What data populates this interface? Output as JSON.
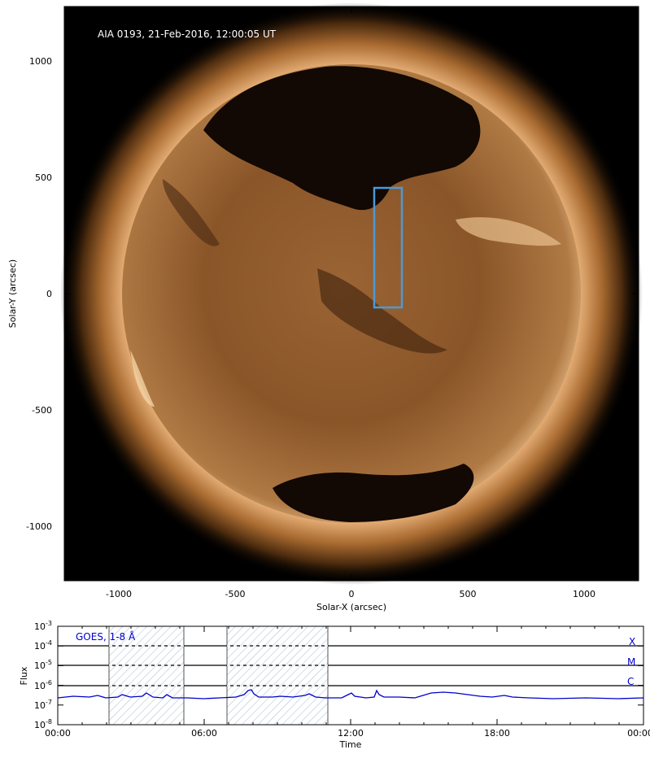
{
  "image_panel": {
    "title": "AIA 0193, 21-Feb-2016, 12:00:05 UT",
    "xlabel": "Solar-X (arcsec)",
    "ylabel": "Solar-Y (arcsec)",
    "x_tick_labels": [
      "-1000",
      "-500",
      "0",
      "500",
      "1000"
    ],
    "y_tick_labels": [
      "1000",
      "500",
      "0",
      "-500",
      "-1000"
    ],
    "highlight_box_color": "#4a9ad8"
  },
  "goes_panel": {
    "label": "GOES, 1-8 Å",
    "ylabel": "Flux",
    "xlabel": "Time",
    "x_tick_labels": [
      "00:00",
      "06:00",
      "12:00",
      "18:00",
      "00:00"
    ],
    "y_tick_base": "10",
    "y_tick_exponents": [
      "-3",
      "-4",
      "-5",
      "-6",
      "-7",
      "-8"
    ],
    "class_labels": [
      "X",
      "M",
      "C"
    ],
    "curve_color": "#0000cc"
  }
}
